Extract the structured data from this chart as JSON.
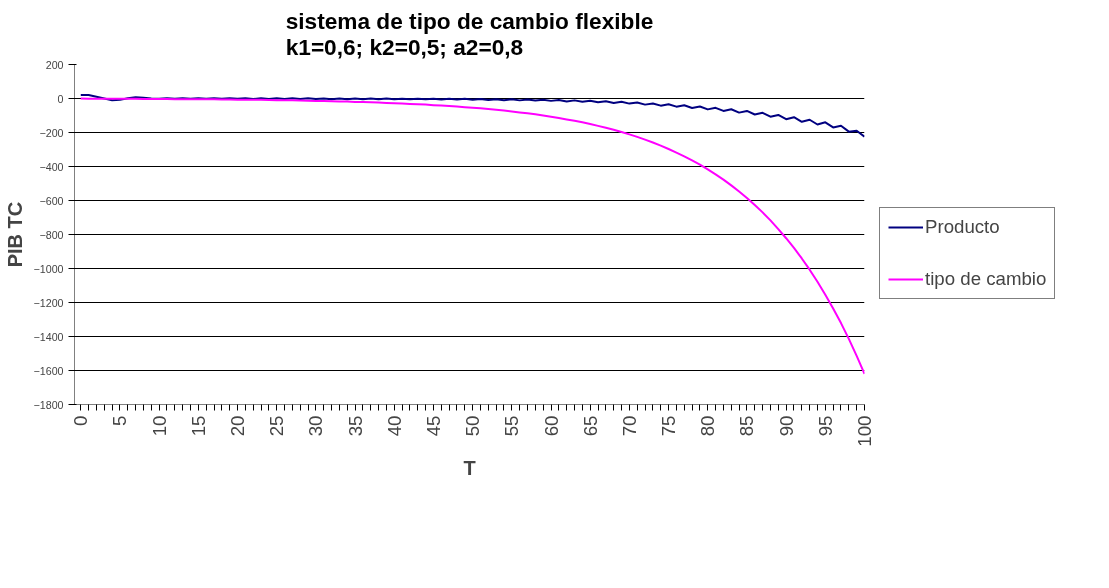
{
  "chart_data": {
    "type": "line",
    "title": "sistema de tipo de cambio flexible\nk1=0,6; k2=0,5; a2=0,8",
    "xlabel": "T",
    "ylabel": "PIB TC",
    "categories": [
      "0",
      null,
      null,
      null,
      null,
      "5",
      null,
      null,
      null,
      null,
      "10",
      null,
      null,
      null,
      null,
      "15",
      null,
      null,
      null,
      null,
      "20",
      null,
      null,
      null,
      null,
      "25",
      null,
      null,
      null,
      null,
      "30",
      null,
      null,
      null,
      null,
      "35",
      null,
      null,
      null,
      null,
      "40",
      null,
      null,
      null,
      null,
      "45",
      null,
      null,
      null,
      null,
      "50",
      null,
      null,
      null,
      null,
      "55",
      null,
      null,
      null,
      null,
      "60",
      null,
      null,
      null,
      null,
      "65",
      null,
      null,
      null,
      null,
      "70",
      null,
      null,
      null,
      null,
      "75",
      null,
      null,
      null,
      null,
      "80",
      null,
      null,
      null,
      null,
      "85",
      null,
      null,
      null,
      null,
      "90",
      null,
      null,
      null,
      null,
      "95",
      null,
      null,
      null,
      null,
      "100"
    ],
    "series": [
      {
        "name": "Producto",
        "color": "#000080",
        "values": [
          20,
          20,
          10,
          0,
          -10,
          -8,
          2,
          8,
          4,
          0,
          -2,
          2,
          -2,
          2,
          -2,
          2,
          -2,
          2,
          -2,
          2,
          -2,
          1,
          -3,
          1,
          -3,
          1,
          -3,
          1,
          -3,
          1,
          -3,
          0,
          -4,
          0,
          -4,
          0,
          -4,
          0,
          -4,
          0,
          -5,
          -1,
          -5,
          -1,
          -5,
          -1,
          -6,
          -2,
          -6,
          -2,
          -7,
          -3,
          -9,
          -4,
          -10,
          -5,
          -11,
          -6,
          -12,
          -7,
          -14,
          -9,
          -17,
          -11,
          -19,
          -13,
          -22,
          -16,
          -26,
          -19,
          -30,
          -24,
          -36,
          -29,
          -42,
          -34,
          -48,
          -40,
          -56,
          -47,
          -64,
          -55,
          -73,
          -63,
          -83,
          -73,
          -94,
          -84,
          -107,
          -97,
          -122,
          -110,
          -137,
          -125,
          -153,
          -140,
          -170,
          -160,
          -195,
          -190,
          -225
        ]
      },
      {
        "name": "tipo de cambio",
        "color": "#ff00ff",
        "values": [
          0,
          -2,
          -2,
          -2,
          -2,
          -2,
          -2,
          -2,
          -3,
          -3,
          -3,
          -3,
          -4,
          -4,
          -4,
          -5,
          -5,
          -5,
          -6,
          -6,
          -7,
          -7,
          -8,
          -8,
          -9,
          -10,
          -10,
          -11,
          -12,
          -13,
          -14,
          -15,
          -16,
          -17,
          -18,
          -20,
          -21,
          -22,
          -24,
          -26,
          -28,
          -29,
          -32,
          -34,
          -36,
          -39,
          -41,
          -44,
          -47,
          -51,
          -54,
          -58,
          -62,
          -66,
          -71,
          -76,
          -82,
          -87,
          -93,
          -100,
          -107,
          -115,
          -123,
          -131,
          -140,
          -150,
          -161,
          -172,
          -184,
          -197,
          -211,
          -226,
          -242,
          -259,
          -277,
          -297,
          -318,
          -340,
          -364,
          -389,
          -417,
          -446,
          -477,
          -511,
          -547,
          -585,
          -626,
          -670,
          -717,
          -768,
          -822,
          -879,
          -941,
          -1007,
          -1078,
          -1154,
          -1235,
          -1321,
          -1414,
          -1514,
          -1620
        ]
      }
    ],
    "ylim": [
      -1800,
      200
    ],
    "yticks": [
      -1800,
      -1600,
      -1400,
      -1200,
      -1000,
      -800,
      -600,
      -400,
      -200,
      0,
      200
    ],
    "grid": "y",
    "legend": "right",
    "marker": "none",
    "line_style": "solid"
  }
}
